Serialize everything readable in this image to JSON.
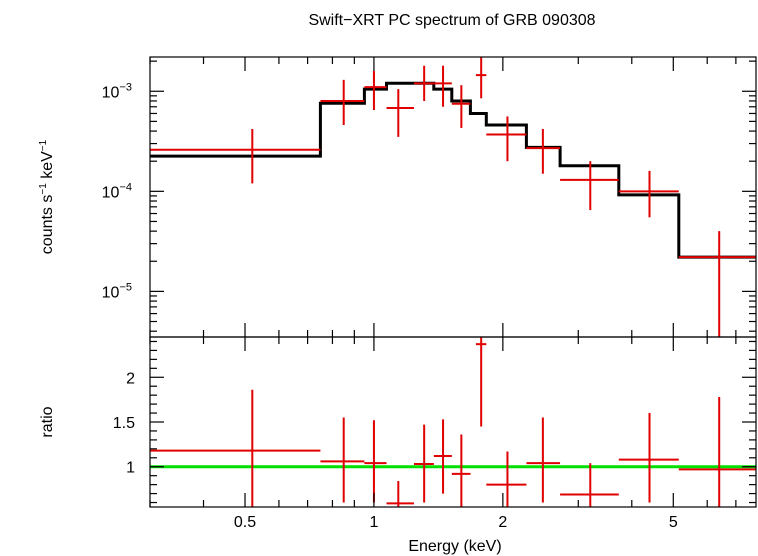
{
  "chart_data": {
    "type": "scatter",
    "title": "Swift−XRT PC spectrum of GRB 090308",
    "xlabel": "Energy (keV)",
    "xscale": "log",
    "xlim": [
      0.3,
      7.8
    ],
    "x_ticks": [
      "0.5",
      "1",
      "2",
      "5"
    ],
    "x_tick_values": [
      0.5,
      1,
      2,
      5
    ],
    "colors": {
      "data": "#e00000",
      "model": "#000000",
      "unity": "#00e000",
      "axes": "#000000"
    },
    "top_panel": {
      "ylabel_main": "counts s",
      "ylabel_sup1": "−1",
      "ylabel_mid": " keV",
      "ylabel_sup2": "−1",
      "yscale": "log",
      "ylim": [
        3.5e-06,
        0.0022
      ],
      "y_ticks": [
        {
          "value": 0.001,
          "base": "10",
          "exp": "−3"
        },
        {
          "value": 0.0001,
          "base": "10",
          "exp": "−4"
        },
        {
          "value": 1e-05,
          "base": "10",
          "exp": "−5"
        }
      ],
      "data": [
        {
          "x": 0.52,
          "xlo": 0.3,
          "xhi": 0.75,
          "y": 0.00026,
          "ylo": 0.00012,
          "yhi": 0.00042
        },
        {
          "x": 0.85,
          "xlo": 0.75,
          "xhi": 0.95,
          "y": 0.0008,
          "ylo": 0.00046,
          "yhi": 0.0013
        },
        {
          "x": 1.0,
          "xlo": 0.95,
          "xhi": 1.07,
          "y": 0.0011,
          "ylo": 0.00065,
          "yhi": 0.0016
        },
        {
          "x": 1.14,
          "xlo": 1.07,
          "xhi": 1.24,
          "y": 0.00068,
          "ylo": 0.00035,
          "yhi": 0.00105
        },
        {
          "x": 1.31,
          "xlo": 1.24,
          "xhi": 1.38,
          "y": 0.0012,
          "ylo": 0.0008,
          "yhi": 0.0018
        },
        {
          "x": 1.45,
          "xlo": 1.38,
          "xhi": 1.52,
          "y": 0.0012,
          "ylo": 0.0007,
          "yhi": 0.0018
        },
        {
          "x": 1.6,
          "xlo": 1.52,
          "xhi": 1.68,
          "y": 0.00075,
          "ylo": 0.00043,
          "yhi": 0.00115
        },
        {
          "x": 1.78,
          "xlo": 1.73,
          "xhi": 1.83,
          "y": 0.00145,
          "ylo": 0.00085,
          "yhi": 0.0022
        },
        {
          "x": 2.05,
          "xlo": 1.83,
          "xhi": 2.27,
          "y": 0.00037,
          "ylo": 0.0002,
          "yhi": 0.00056
        },
        {
          "x": 2.48,
          "xlo": 2.27,
          "xhi": 2.72,
          "y": 0.00027,
          "ylo": 0.00015,
          "yhi": 0.00042
        },
        {
          "x": 3.2,
          "xlo": 2.72,
          "xhi": 3.73,
          "y": 0.00013,
          "ylo": 6.5e-05,
          "yhi": 0.0002
        },
        {
          "x": 4.4,
          "xlo": 3.73,
          "xhi": 5.15,
          "y": 0.0001,
          "ylo": 5.5e-05,
          "yhi": 0.00016
        },
        {
          "x": 6.4,
          "xlo": 5.15,
          "xhi": 7.8,
          "y": 2.2e-05,
          "ylo": 3.5e-06,
          "yhi": 4e-05
        }
      ],
      "model_steps": [
        {
          "xlo": 0.3,
          "xhi": 0.75,
          "y": 0.000225
        },
        {
          "xlo": 0.75,
          "xhi": 0.95,
          "y": 0.00076
        },
        {
          "xlo": 0.95,
          "xhi": 1.07,
          "y": 0.00105
        },
        {
          "xlo": 1.07,
          "xhi": 1.24,
          "y": 0.0012
        },
        {
          "xlo": 1.24,
          "xhi": 1.38,
          "y": 0.0012
        },
        {
          "xlo": 1.38,
          "xhi": 1.52,
          "y": 0.00105
        },
        {
          "xlo": 1.52,
          "xhi": 1.68,
          "y": 0.0008
        },
        {
          "xlo": 1.68,
          "xhi": 1.83,
          "y": 0.0006
        },
        {
          "xlo": 1.83,
          "xhi": 2.27,
          "y": 0.00046
        },
        {
          "xlo": 2.27,
          "xhi": 2.72,
          "y": 0.000275
        },
        {
          "xlo": 2.72,
          "xhi": 3.73,
          "y": 0.00018
        },
        {
          "xlo": 3.73,
          "xhi": 5.15,
          "y": 9.2e-05
        },
        {
          "xlo": 5.15,
          "xhi": 7.8,
          "y": 2.2e-05
        }
      ]
    },
    "bottom_panel": {
      "ylabel": "ratio",
      "ylim": [
        0.55,
        2.45
      ],
      "y_ticks": [
        "1",
        "1.5",
        "2"
      ],
      "y_tick_values": [
        1,
        1.5,
        2
      ],
      "unity_line": 1,
      "data": [
        {
          "x": 0.52,
          "xlo": 0.3,
          "xhi": 0.75,
          "y": 1.18,
          "ylo": 0.55,
          "yhi": 1.86
        },
        {
          "x": 0.85,
          "xlo": 0.75,
          "xhi": 0.95,
          "y": 1.06,
          "ylo": 0.6,
          "yhi": 1.55
        },
        {
          "x": 1.0,
          "xlo": 0.95,
          "xhi": 1.07,
          "y": 1.04,
          "ylo": 0.6,
          "yhi": 1.52
        },
        {
          "x": 1.14,
          "xlo": 1.07,
          "xhi": 1.24,
          "y": 0.59,
          "ylo": 0.55,
          "yhi": 0.84
        },
        {
          "x": 1.31,
          "xlo": 1.24,
          "xhi": 1.38,
          "y": 1.03,
          "ylo": 0.6,
          "yhi": 1.47
        },
        {
          "x": 1.45,
          "xlo": 1.38,
          "xhi": 1.52,
          "y": 1.12,
          "ylo": 0.7,
          "yhi": 1.53
        },
        {
          "x": 1.6,
          "xlo": 1.52,
          "xhi": 1.68,
          "y": 0.92,
          "ylo": 0.55,
          "yhi": 1.36
        },
        {
          "x": 1.78,
          "xlo": 1.73,
          "xhi": 1.83,
          "y": 2.37,
          "ylo": 1.45,
          "yhi": 2.45
        },
        {
          "x": 2.05,
          "xlo": 1.83,
          "xhi": 2.27,
          "y": 0.8,
          "ylo": 0.55,
          "yhi": 1.17
        },
        {
          "x": 2.48,
          "xlo": 2.27,
          "xhi": 2.72,
          "y": 1.04,
          "ylo": 0.6,
          "yhi": 1.55
        },
        {
          "x": 3.2,
          "xlo": 2.72,
          "xhi": 3.73,
          "y": 0.69,
          "ylo": 0.55,
          "yhi": 1.04
        },
        {
          "x": 4.4,
          "xlo": 3.73,
          "xhi": 5.15,
          "y": 1.08,
          "ylo": 0.6,
          "yhi": 1.6
        },
        {
          "x": 6.4,
          "xlo": 5.15,
          "xhi": 7.8,
          "y": 0.97,
          "ylo": 0.55,
          "yhi": 1.78
        }
      ]
    }
  }
}
